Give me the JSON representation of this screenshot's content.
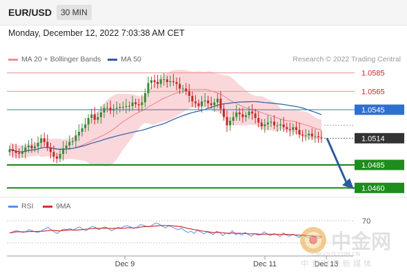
{
  "header": {
    "pair": "EUR/USD",
    "interval": "30 MIN",
    "datetime": "Monday, December 12, 2022 7:03:38 AM CET"
  },
  "legend": {
    "ma20_label": "MA 20 + Bollinger Bands",
    "ma50_label": "MA 50",
    "copyright": "Research © 2022 Trading Central",
    "rsi_label": "RSI",
    "rsi_ma_label": "9MA"
  },
  "watermark": {
    "cn": "中金网",
    "url": "CNGOLD.COM.CN",
    "tagline": "中 金 财 经 新 媒 体"
  },
  "colors": {
    "up_candle": "#3a8a3a",
    "down_candle": "#c62828",
    "bollinger": "#f8c9cf",
    "ma20": "#ef8e96",
    "ma50": "#2e5aa8",
    "resistance_line": "#ef8e8e",
    "pivot_line": "#3a6fc4",
    "support_line": "#1e8c1e",
    "forecast_arrow": "#2a5c9a",
    "rsi": "#5b8def",
    "rsi_ma": "#d32f2f"
  },
  "chart_data": {
    "type": "candlestick",
    "timeframe": "30 MIN",
    "x_tick_labels": [
      "Dec 9",
      "Dec 11",
      "Dec 13"
    ],
    "y_range": [
      1.0452,
      1.0593
    ],
    "price_close_series": [
      1.0502,
      1.05,
      1.0498,
      1.0497,
      1.0499,
      1.0504,
      1.0506,
      1.0503,
      1.0505,
      1.0509,
      1.0514,
      1.051,
      1.0504,
      1.0499,
      1.0494,
      1.0492,
      1.0497,
      1.0503,
      1.0506,
      1.051,
      1.0511,
      1.0517,
      1.0521,
      1.0525,
      1.0529,
      1.0536,
      1.054,
      1.0534,
      1.0537,
      1.0542,
      1.0547,
      1.0547,
      1.0544,
      1.0546,
      1.0547,
      1.0548,
      1.0548,
      1.0549,
      1.0549,
      1.0553,
      1.0551,
      1.055,
      1.0553,
      1.0563,
      1.0574,
      1.0577,
      1.0575,
      1.0573,
      1.0578,
      1.0578,
      1.0575,
      1.0576,
      1.0575,
      1.0573,
      1.0568,
      1.0568,
      1.0565,
      1.056,
      1.0554,
      1.0552,
      1.0549,
      1.0554,
      1.0555,
      1.0552,
      1.055,
      1.0553,
      1.0557,
      1.0546,
      1.0537,
      1.0528,
      1.0533,
      1.0537,
      1.0542,
      1.054,
      1.0537,
      1.0539,
      1.0543,
      1.0541,
      1.0536,
      1.0531,
      1.0527,
      1.0529,
      1.0531,
      1.0532,
      1.0528,
      1.0528,
      1.0529,
      1.0526,
      1.0524,
      1.0523,
      1.0526,
      1.0523,
      1.0518,
      1.0517,
      1.0517,
      1.0519,
      1.0516,
      1.0516,
      1.0515,
      1.0514
    ],
    "horizontal_levels": [
      {
        "value": 1.0585,
        "label": "1.0585",
        "kind": "resistance"
      },
      {
        "value": 1.0565,
        "label": "1.0565",
        "kind": "resistance"
      },
      {
        "value": 1.0545,
        "label": "1.0545",
        "kind": "pivot"
      },
      {
        "value": 1.0514,
        "label": "1.0514",
        "kind": "last_price"
      },
      {
        "value": 1.0485,
        "label": "1.0485",
        "kind": "support"
      },
      {
        "value": 1.046,
        "label": "1.0460",
        "kind": "support"
      }
    ],
    "forecast": {
      "from": 1.0514,
      "to": 1.046,
      "direction": "down"
    },
    "indicators": [
      "MA 20 + Bollinger Bands",
      "MA 50"
    ],
    "rsi": {
      "level_label": "70",
      "y_range": [
        15,
        85
      ],
      "values": [
        48,
        50,
        52,
        51,
        49,
        50,
        54,
        52,
        50,
        49,
        52,
        55,
        58,
        54,
        50,
        47,
        52,
        55,
        54,
        56,
        53,
        57,
        59,
        55,
        52,
        57,
        60,
        58,
        54,
        57,
        59,
        56,
        52,
        55,
        58,
        57,
        60,
        61,
        59,
        56,
        58,
        63,
        62,
        60,
        59,
        63,
        66,
        64,
        60,
        57,
        61,
        59,
        56,
        54,
        57,
        52,
        49,
        51,
        47,
        53,
        50,
        46,
        50,
        48,
        45,
        51,
        49,
        43,
        48,
        46,
        52,
        45,
        47,
        44,
        49,
        45,
        42,
        47,
        44,
        45,
        50,
        46,
        43,
        47,
        45,
        41,
        48,
        44,
        42,
        46,
        43,
        40,
        45,
        42,
        39,
        44,
        41,
        38,
        40
      ]
    }
  }
}
